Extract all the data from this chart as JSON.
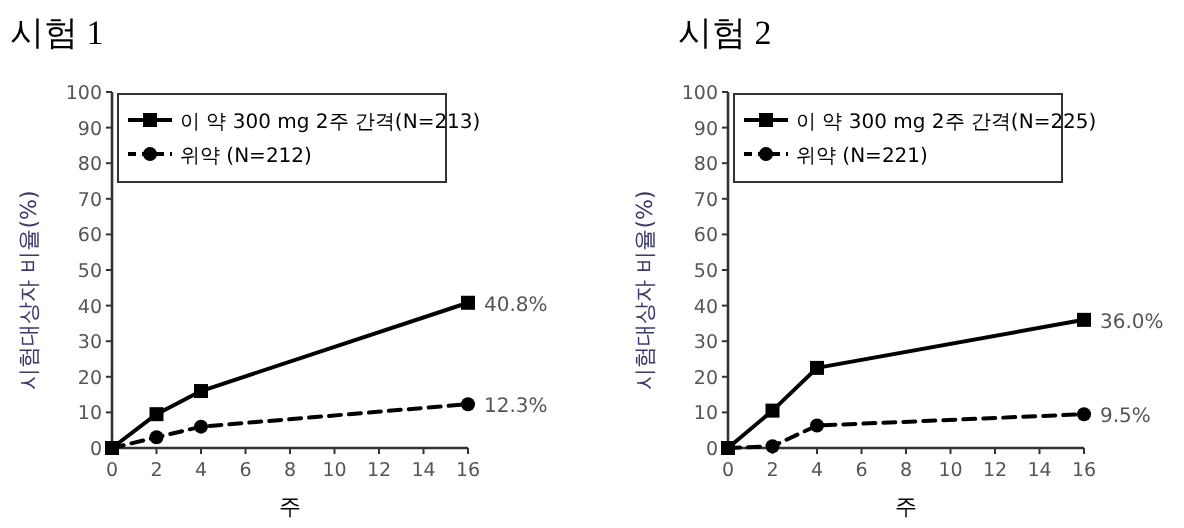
{
  "chart_data": [
    {
      "type": "line",
      "title": "시험 1",
      "xlabel": "주",
      "ylabel": "시험대상자 비율(%)",
      "x": [
        0,
        2,
        4,
        16
      ],
      "xlim": [
        0,
        16
      ],
      "xticks": [
        0,
        2,
        4,
        6,
        8,
        10,
        12,
        14,
        16
      ],
      "ylim": [
        0,
        100
      ],
      "yticks": [
        0,
        10,
        20,
        30,
        40,
        50,
        60,
        70,
        80,
        90,
        100
      ],
      "grid": false,
      "legend": "top left",
      "series": [
        {
          "name": "이 약 300 mg 2주 간격(N=213)",
          "color": "#000000",
          "marker": "square",
          "line_style": "solid",
          "values": [
            0,
            9.5,
            16,
            40.8
          ],
          "value_labels": [
            null,
            null,
            null,
            "40.8%"
          ]
        },
        {
          "name": "위약 (N=212)",
          "color": "#000000",
          "marker": "circle",
          "line_style": "dashed",
          "values": [
            0,
            3,
            6,
            12.3
          ],
          "value_labels": [
            null,
            null,
            null,
            "12.3%"
          ]
        }
      ]
    },
    {
      "type": "line",
      "title": "시험 2",
      "xlabel": "주",
      "ylabel": "시험대상자 비율(%)",
      "x": [
        0,
        2,
        4,
        16
      ],
      "xlim": [
        0,
        16
      ],
      "xticks": [
        0,
        2,
        4,
        6,
        8,
        10,
        12,
        14,
        16
      ],
      "ylim": [
        0,
        100
      ],
      "yticks": [
        0,
        10,
        20,
        30,
        40,
        50,
        60,
        70,
        80,
        90,
        100
      ],
      "grid": false,
      "legend": "top left",
      "series": [
        {
          "name": "이 약 300 mg 2주 간격(N=225)",
          "color": "#000000",
          "marker": "square",
          "line_style": "solid",
          "values": [
            0,
            10.5,
            22.5,
            36.0
          ],
          "value_labels": [
            null,
            null,
            null,
            "36.0%"
          ]
        },
        {
          "name": "위약 (N=221)",
          "color": "#000000",
          "marker": "circle",
          "line_style": "dashed",
          "values": [
            0,
            0.5,
            6.3,
            9.5
          ],
          "value_labels": [
            null,
            null,
            null,
            "9.5%"
          ]
        }
      ]
    }
  ]
}
